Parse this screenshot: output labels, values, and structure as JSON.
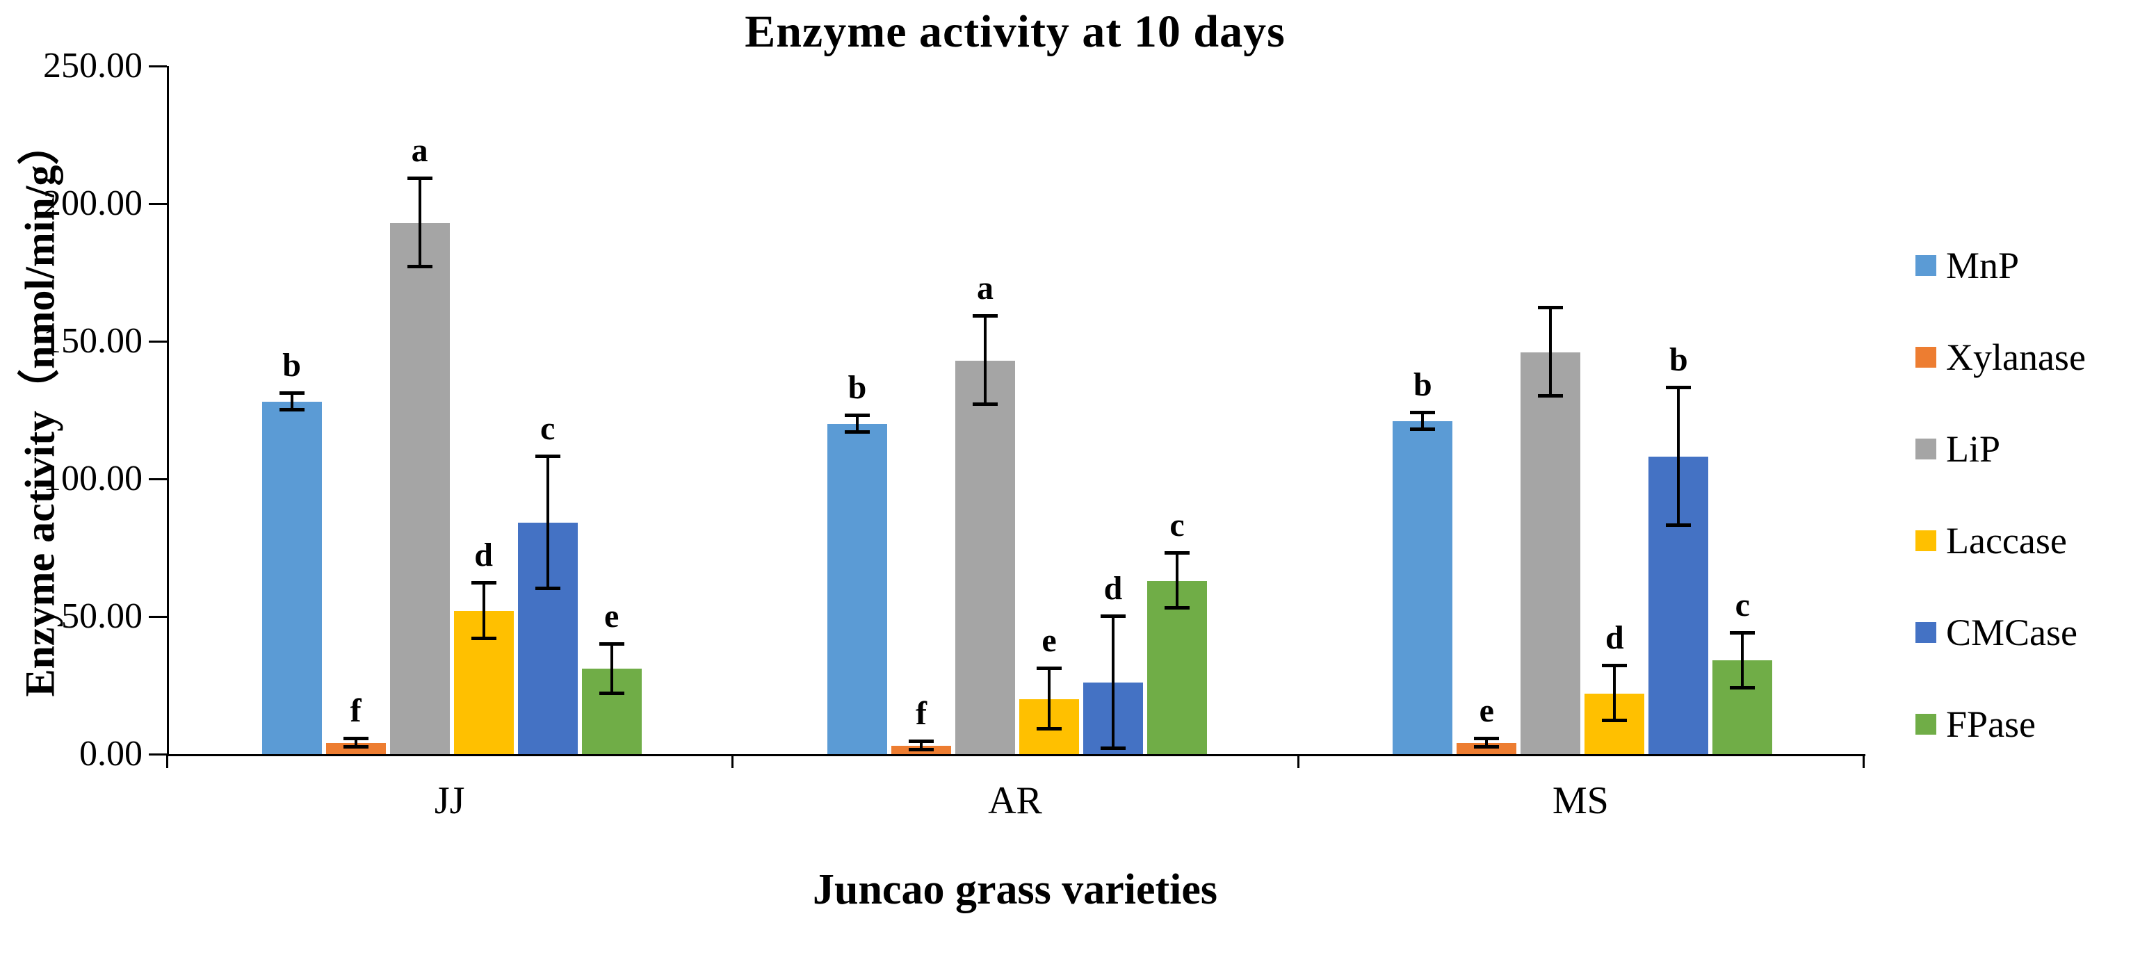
{
  "chart_data": {
    "type": "bar",
    "title": "Enzyme activity at 10 days",
    "xlabel": "Juncao grass varieties",
    "ylabel": "Enzyme activity（nmol/min/g）",
    "ylim": [
      0,
      250
    ],
    "ytick_step": 50,
    "ytick_labels": [
      "0.00",
      "50.00",
      "100.00",
      "150.00",
      "200.00",
      "250.00"
    ],
    "categories": [
      "JJ",
      "AR",
      "MS"
    ],
    "grid": false,
    "legend_position": "right",
    "series": [
      {
        "name": "MnP",
        "color": "#5B9BD5",
        "values": [
          128,
          120,
          121
        ],
        "errors": [
          3,
          3,
          3
        ],
        "letters": [
          "b",
          "b",
          "b"
        ]
      },
      {
        "name": "Xylanase",
        "color": "#ED7D31",
        "values": [
          4,
          3,
          4
        ],
        "errors": [
          1.5,
          1.5,
          1.5
        ],
        "letters": [
          "f",
          "f",
          "e"
        ]
      },
      {
        "name": "LiP",
        "color": "#A5A5A5",
        "values": [
          193,
          143,
          146
        ],
        "errors": [
          16,
          16,
          16
        ],
        "letters": [
          "a",
          "a",
          ""
        ]
      },
      {
        "name": "Laccase",
        "color": "#FFC000",
        "values": [
          52,
          20,
          22
        ],
        "errors": [
          10,
          11,
          10
        ],
        "letters": [
          "d",
          "e",
          "d"
        ]
      },
      {
        "name": "CMCase",
        "color": "#4472C4",
        "values": [
          84,
          26,
          108
        ],
        "errors": [
          24,
          24,
          25
        ],
        "letters": [
          "c",
          "d",
          "b"
        ]
      },
      {
        "name": "FPase",
        "color": "#70AD47",
        "values": [
          31,
          63,
          34
        ],
        "errors": [
          9,
          10,
          10
        ],
        "letters": [
          "e",
          "c",
          "c"
        ]
      }
    ]
  }
}
